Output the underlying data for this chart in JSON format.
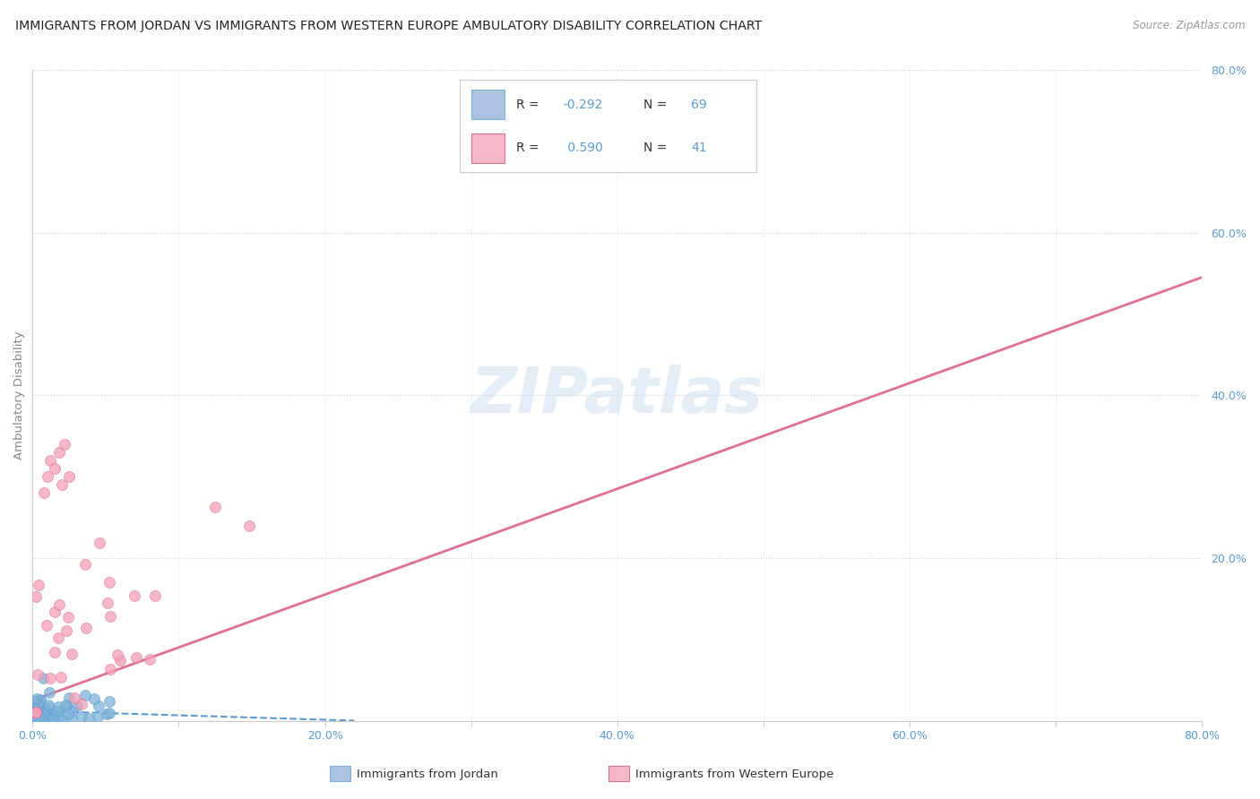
{
  "title": "IMMIGRANTS FROM JORDAN VS IMMIGRANTS FROM WESTERN EUROPE AMBULATORY DISABILITY CORRELATION CHART",
  "source": "Source: ZipAtlas.com",
  "ylabel": "Ambulatory Disability",
  "xlabel": "",
  "xlim": [
    0,
    0.8
  ],
  "ylim": [
    0,
    0.8
  ],
  "xtick_positions": [
    0.0,
    0.1,
    0.2,
    0.3,
    0.4,
    0.5,
    0.6,
    0.7,
    0.8
  ],
  "xtick_labels": [
    "0.0%",
    "",
    "20.0%",
    "",
    "40.0%",
    "",
    "60.0%",
    "",
    "80.0%"
  ],
  "ytick_positions": [
    0.2,
    0.4,
    0.6,
    0.8
  ],
  "ytick_labels": [
    "20.0%",
    "40.0%",
    "60.0%",
    "80.0%"
  ],
  "background_color": "#ffffff",
  "grid_color": "#cccccc",
  "axis_label_color": "#888888",
  "tick_color": "#5b9bd5",
  "jordan_scatter_color": "#7eb3d8",
  "jordan_scatter_edge": "#5b9bd5",
  "western_scatter_color": "#f4a0b8",
  "western_scatter_edge": "#e07090",
  "jordan_line_color": "#5b9bd5",
  "western_line_color": "#e07090",
  "jordan_R": -0.292,
  "jordan_N": 69,
  "western_R": 0.59,
  "western_N": 41,
  "legend_jordan_color": "#aac4e0",
  "legend_jordan_edge": "#7eb3d8",
  "legend_western_color": "#f4b8c8",
  "legend_western_edge": "#e07090",
  "watermark": "ZIPatlas",
  "watermark_color": "#ddeeff"
}
